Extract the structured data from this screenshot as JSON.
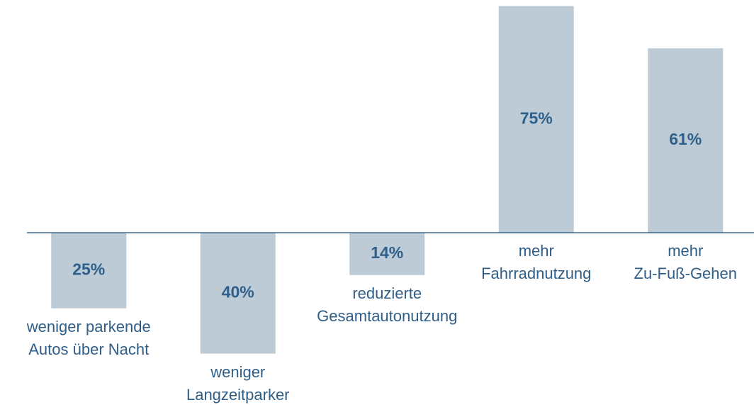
{
  "chart_data": {
    "type": "bar",
    "categories": [
      "weniger parkende\nAutos über Nacht",
      "weniger\nLangzeitparker",
      "reduzierte\nGesamtautonutzung",
      "mehr\nFahrradnutzung",
      "mehr\nZu-Fuß-Gehen"
    ],
    "values": [
      -25,
      -40,
      -14,
      75,
      61
    ],
    "value_labels": [
      "25%",
      "40%",
      "14%",
      "75%",
      "61%"
    ],
    "color": "#bccbd6",
    "ylim": [
      -57,
      77
    ]
  }
}
